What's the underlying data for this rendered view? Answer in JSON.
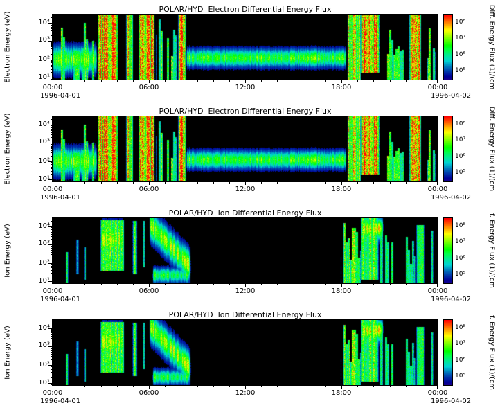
{
  "page": {
    "background": "#ffffff"
  },
  "panels": [
    {
      "title": "POLAR/HYD  Electron Differential Energy Flux",
      "ylabel": "Electron Energy (eV)",
      "yticks": [
        "10⁴",
        "10³",
        "10²",
        "10¹"
      ],
      "xticks": [
        "00:00",
        "06:00",
        "12:00",
        "18:00",
        "00:00"
      ],
      "date_left": "1996-04-01",
      "date_right": "1996-04-02",
      "colorbar_ticks": [
        "10⁸",
        "10⁷",
        "10⁶",
        "10⁵"
      ],
      "colorbar_label": "Diff. Energy Flux (1)/(cm"
    },
    {
      "title": "POLAR/HYD  Electron Differential Energy Flux",
      "ylabel": "Electron Energy (eV)",
      "yticks": [
        "10⁴",
        "10³",
        "10²",
        "10¹"
      ],
      "xticks": [
        "00:00",
        "06:00",
        "12:00",
        "18:00",
        "00:00"
      ],
      "date_left": "1996-04-01",
      "date_right": "1996-04-02",
      "colorbar_ticks": [
        "10⁸",
        "10⁷",
        "10⁶",
        "10⁵"
      ],
      "colorbar_label": "Diff. Energy Flux (1)/(cm"
    },
    {
      "title": "POLAR/HYD  Ion Differential Energy Flux",
      "ylabel": "Ion Energy (eV)",
      "yticks": [
        "10⁴",
        "10³",
        "10²",
        "10¹"
      ],
      "xticks": [
        "00:00",
        "06:00",
        "12:00",
        "18:00",
        "00:00"
      ],
      "date_left": "1996-04-01",
      "date_right": "1996-04-02",
      "colorbar_ticks": [
        "10⁸",
        "10⁷",
        "10⁶",
        "10⁵"
      ],
      "colorbar_label": "f. Energy Flux (1)/(cm"
    },
    {
      "title": "POLAR/HYD  Ion Differential Energy Flux",
      "ylabel": "Ion Energy (eV)",
      "yticks": [
        "10⁴",
        "10³",
        "10²",
        "10¹"
      ],
      "xticks": [
        "00:00",
        "06:00",
        "12:00",
        "18:00",
        "00:00"
      ],
      "date_left": "1996-04-01",
      "date_right": "1996-04-02",
      "colorbar_ticks": [
        "10⁸",
        "10⁷",
        "10⁶",
        "10⁵"
      ],
      "colorbar_label": "f. Energy Flux (1)/(cm"
    }
  ],
  "chart_data": [
    {
      "type": "heatmap",
      "species": "electron",
      "title": "POLAR/HYD  Electron Differential Energy Flux",
      "ylabel": "Electron Energy (eV)",
      "y_scale": "log",
      "y_tick_values_eV": [
        10000,
        1000,
        100,
        10
      ],
      "x_range_hours": [
        0,
        24
      ],
      "x_tick_labels": [
        "00:00",
        "06:00",
        "12:00",
        "18:00",
        "00:00"
      ],
      "x_start_date": "1996-04-01",
      "x_end_date": "1996-04-02",
      "colorbar_tick_values": [
        100000000,
        10000000,
        1000000,
        100000
      ],
      "features": [
        {
          "kind": "band",
          "t0": 0.0,
          "t1": 2.75,
          "ec": 2.0,
          "w": 0.45,
          "v": 0.62
        },
        {
          "kind": "patchcols",
          "t0": 0.15,
          "t1": 2.75,
          "e0": 0.9,
          "e1": 4.3,
          "v": 0.55,
          "gap": 0.45
        },
        {
          "kind": "column",
          "t0": 2.8,
          "t1": 4.05,
          "e0": 0.9,
          "e1": 4.45,
          "v": 0.95
        },
        {
          "kind": "column",
          "t0": 4.55,
          "t1": 5.0,
          "e0": 0.9,
          "e1": 4.45,
          "v": 0.85
        },
        {
          "kind": "column",
          "t0": 5.35,
          "t1": 6.35,
          "e0": 0.9,
          "e1": 4.45,
          "v": 0.9
        },
        {
          "kind": "patchcols",
          "t0": 6.4,
          "t1": 7.75,
          "e0": 0.9,
          "e1": 4.25,
          "v": 0.55,
          "gap": 0.35
        },
        {
          "kind": "column",
          "t0": 7.8,
          "t1": 8.3,
          "e0": 0.9,
          "e1": 4.45,
          "v": 0.92
        },
        {
          "kind": "band",
          "t0": 8.3,
          "t1": 18.3,
          "ec": 2.1,
          "w": 0.3,
          "v": 0.58
        },
        {
          "kind": "column",
          "t0": 18.35,
          "t1": 19.2,
          "e0": 0.9,
          "e1": 4.45,
          "v": 0.78
        },
        {
          "kind": "column",
          "t0": 19.2,
          "t1": 20.35,
          "e0": 1.3,
          "e1": 4.45,
          "v": 0.93
        },
        {
          "kind": "patchcols",
          "t0": 20.7,
          "t1": 21.9,
          "e0": 0.9,
          "e1": 4.3,
          "v": 0.58,
          "gap": 0.3
        },
        {
          "kind": "column",
          "t0": 22.2,
          "t1": 22.95,
          "e0": 0.9,
          "e1": 4.45,
          "v": 0.85
        },
        {
          "kind": "patchcols",
          "t0": 23.3,
          "t1": 23.85,
          "e0": 0.9,
          "e1": 4.2,
          "v": 0.55,
          "gap": 0.3
        }
      ]
    },
    {
      "type": "heatmap",
      "species": "electron",
      "title": "POLAR/HYD  Electron Differential Energy Flux",
      "ylabel": "Electron Energy (eV)",
      "y_scale": "log",
      "y_tick_values_eV": [
        10000,
        1000,
        100,
        10
      ],
      "x_range_hours": [
        0,
        24
      ],
      "x_tick_labels": [
        "00:00",
        "06:00",
        "12:00",
        "18:00",
        "00:00"
      ],
      "x_start_date": "1996-04-01",
      "x_end_date": "1996-04-02",
      "colorbar_tick_values": [
        100000000,
        10000000,
        1000000,
        100000
      ],
      "features": [
        {
          "kind": "band",
          "t0": 0.0,
          "t1": 2.75,
          "ec": 2.0,
          "w": 0.45,
          "v": 0.62
        },
        {
          "kind": "patchcols",
          "t0": 0.15,
          "t1": 2.75,
          "e0": 0.9,
          "e1": 4.3,
          "v": 0.55,
          "gap": 0.45
        },
        {
          "kind": "column",
          "t0": 2.8,
          "t1": 4.05,
          "e0": 0.9,
          "e1": 4.45,
          "v": 0.95
        },
        {
          "kind": "column",
          "t0": 4.55,
          "t1": 5.0,
          "e0": 0.9,
          "e1": 4.45,
          "v": 0.85
        },
        {
          "kind": "column",
          "t0": 5.35,
          "t1": 6.35,
          "e0": 0.9,
          "e1": 4.45,
          "v": 0.9
        },
        {
          "kind": "patchcols",
          "t0": 6.4,
          "t1": 7.75,
          "e0": 0.9,
          "e1": 4.25,
          "v": 0.55,
          "gap": 0.35
        },
        {
          "kind": "column",
          "t0": 7.8,
          "t1": 8.3,
          "e0": 0.9,
          "e1": 4.45,
          "v": 0.92
        },
        {
          "kind": "band",
          "t0": 8.3,
          "t1": 18.3,
          "ec": 2.1,
          "w": 0.3,
          "v": 0.58
        },
        {
          "kind": "column",
          "t0": 18.35,
          "t1": 19.2,
          "e0": 0.9,
          "e1": 4.45,
          "v": 0.78
        },
        {
          "kind": "column",
          "t0": 19.2,
          "t1": 20.35,
          "e0": 1.3,
          "e1": 4.45,
          "v": 0.93
        },
        {
          "kind": "patchcols",
          "t0": 20.7,
          "t1": 21.9,
          "e0": 0.9,
          "e1": 4.3,
          "v": 0.58,
          "gap": 0.3
        },
        {
          "kind": "column",
          "t0": 22.2,
          "t1": 22.95,
          "e0": 0.9,
          "e1": 4.45,
          "v": 0.85
        },
        {
          "kind": "patchcols",
          "t0": 23.3,
          "t1": 23.85,
          "e0": 0.9,
          "e1": 4.2,
          "v": 0.55,
          "gap": 0.3
        }
      ]
    },
    {
      "type": "heatmap",
      "species": "ion",
      "title": "POLAR/HYD  Ion Differential Energy Flux",
      "ylabel": "Ion Energy (eV)",
      "y_scale": "log",
      "y_tick_values_eV": [
        10000,
        1000,
        100,
        10
      ],
      "x_range_hours": [
        0,
        24
      ],
      "x_tick_labels": [
        "00:00",
        "06:00",
        "12:00",
        "18:00",
        "00:00"
      ],
      "x_start_date": "1996-04-01",
      "x_end_date": "1996-04-02",
      "colorbar_tick_values": [
        100000000,
        10000000,
        1000000,
        100000
      ],
      "features": [
        {
          "kind": "column",
          "t0": 0.8,
          "t1": 0.97,
          "e0": 0.9,
          "e1": 2.6,
          "v": 0.58
        },
        {
          "kind": "column",
          "t0": 1.45,
          "t1": 1.62,
          "e0": 1.4,
          "e1": 3.3,
          "v": 0.55
        },
        {
          "kind": "column",
          "t0": 1.95,
          "t1": 2.08,
          "e0": 1.1,
          "e1": 2.9,
          "v": 0.5
        },
        {
          "kind": "column",
          "t0": 2.95,
          "t1": 4.45,
          "e0": 1.6,
          "e1": 4.35,
          "v": 0.55
        },
        {
          "kind": "band",
          "t0": 3.0,
          "t1": 4.4,
          "ec": 3.3,
          "w": 0.55,
          "v": 0.7
        },
        {
          "kind": "column",
          "t0": 4.95,
          "t1": 5.25,
          "e0": 1.4,
          "e1": 4.3,
          "v": 0.58
        },
        {
          "kind": "column",
          "t0": 5.6,
          "t1": 5.75,
          "e0": 1.8,
          "e1": 4.3,
          "v": 0.5
        },
        {
          "kind": "wedge",
          "t0": 6.0,
          "t1": 8.6,
          "ec0": 4.15,
          "ec1": 1.8,
          "w": 0.5,
          "v": 0.68
        },
        {
          "kind": "band",
          "t0": 6.2,
          "t1": 8.45,
          "ec": 1.35,
          "w": 0.25,
          "v": 0.5
        },
        {
          "kind": "patchcols",
          "t0": 17.95,
          "t1": 19.2,
          "e0": 0.9,
          "e1": 4.35,
          "v": 0.6,
          "gap": 0.35
        },
        {
          "kind": "column",
          "t0": 19.2,
          "t1": 20.3,
          "e0": 1.1,
          "e1": 4.45,
          "v": 0.62
        },
        {
          "kind": "band",
          "t0": 19.2,
          "t1": 20.6,
          "ec": 3.9,
          "w": 0.35,
          "v": 0.72
        },
        {
          "kind": "patchcols",
          "t0": 20.35,
          "t1": 21.5,
          "e0": 0.9,
          "e1": 4.1,
          "v": 0.5,
          "gap": 0.3
        },
        {
          "kind": "patchcols",
          "t0": 21.8,
          "t1": 22.6,
          "e0": 0.9,
          "e1": 3.6,
          "v": 0.45,
          "gap": 0.3
        },
        {
          "kind": "column",
          "t0": 22.65,
          "t1": 23.15,
          "e0": 0.9,
          "e1": 4.1,
          "v": 0.58
        },
        {
          "kind": "column",
          "t0": 23.55,
          "t1": 23.72,
          "e0": 0.9,
          "e1": 3.8,
          "v": 0.5
        }
      ]
    },
    {
      "type": "heatmap",
      "species": "ion",
      "title": "POLAR/HYD  Ion Differential Energy Flux",
      "ylabel": "Ion Energy (eV)",
      "y_scale": "log",
      "y_tick_values_eV": [
        10000,
        1000,
        100,
        10
      ],
      "x_range_hours": [
        0,
        24
      ],
      "x_tick_labels": [
        "00:00",
        "06:00",
        "12:00",
        "18:00",
        "00:00"
      ],
      "x_start_date": "1996-04-01",
      "x_end_date": "1996-04-02",
      "colorbar_tick_values": [
        100000000,
        10000000,
        1000000,
        100000
      ],
      "features": [
        {
          "kind": "column",
          "t0": 0.8,
          "t1": 0.97,
          "e0": 0.9,
          "e1": 2.6,
          "v": 0.58
        },
        {
          "kind": "column",
          "t0": 1.45,
          "t1": 1.62,
          "e0": 1.4,
          "e1": 3.3,
          "v": 0.55
        },
        {
          "kind": "column",
          "t0": 1.95,
          "t1": 2.08,
          "e0": 1.1,
          "e1": 2.9,
          "v": 0.5
        },
        {
          "kind": "column",
          "t0": 2.95,
          "t1": 4.45,
          "e0": 1.6,
          "e1": 4.35,
          "v": 0.55
        },
        {
          "kind": "band",
          "t0": 3.0,
          "t1": 4.4,
          "ec": 3.3,
          "w": 0.55,
          "v": 0.7
        },
        {
          "kind": "column",
          "t0": 4.95,
          "t1": 5.25,
          "e0": 1.4,
          "e1": 4.3,
          "v": 0.58
        },
        {
          "kind": "column",
          "t0": 5.6,
          "t1": 5.75,
          "e0": 1.8,
          "e1": 4.3,
          "v": 0.5
        },
        {
          "kind": "wedge",
          "t0": 6.0,
          "t1": 8.6,
          "ec0": 4.15,
          "ec1": 1.8,
          "w": 0.5,
          "v": 0.68
        },
        {
          "kind": "band",
          "t0": 6.2,
          "t1": 8.45,
          "ec": 1.35,
          "w": 0.25,
          "v": 0.5
        },
        {
          "kind": "patchcols",
          "t0": 17.95,
          "t1": 19.2,
          "e0": 0.9,
          "e1": 4.35,
          "v": 0.6,
          "gap": 0.35
        },
        {
          "kind": "column",
          "t0": 19.2,
          "t1": 20.3,
          "e0": 1.1,
          "e1": 4.45,
          "v": 0.62
        },
        {
          "kind": "band",
          "t0": 19.2,
          "t1": 20.6,
          "ec": 3.9,
          "w": 0.35,
          "v": 0.72
        },
        {
          "kind": "patchcols",
          "t0": 20.35,
          "t1": 21.5,
          "e0": 0.9,
          "e1": 4.1,
          "v": 0.5,
          "gap": 0.3
        },
        {
          "kind": "patchcols",
          "t0": 21.8,
          "t1": 22.6,
          "e0": 0.9,
          "e1": 3.6,
          "v": 0.45,
          "gap": 0.3
        },
        {
          "kind": "column",
          "t0": 22.65,
          "t1": 23.15,
          "e0": 0.9,
          "e1": 4.1,
          "v": 0.58
        },
        {
          "kind": "column",
          "t0": 23.55,
          "t1": 23.72,
          "e0": 0.9,
          "e1": 3.8,
          "v": 0.5
        }
      ]
    }
  ]
}
